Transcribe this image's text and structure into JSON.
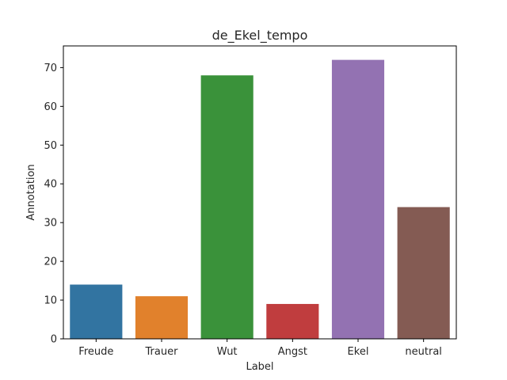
{
  "chart_data": {
    "type": "bar",
    "title": "de_Ekel_tempo",
    "xlabel": "Label",
    "ylabel": "Annotation",
    "categories": [
      "Freude",
      "Trauer",
      "Wut",
      "Angst",
      "Ekel",
      "neutral"
    ],
    "values": [
      14,
      11,
      68,
      9,
      72,
      34
    ],
    "colors": [
      "#3274a1",
      "#e1812c",
      "#3a923a",
      "#c03d3e",
      "#9372b2",
      "#845b53"
    ],
    "ylim": [
      0,
      75.6
    ],
    "yticks": [
      0,
      10,
      20,
      30,
      40,
      50,
      60,
      70
    ],
    "grid": false,
    "legend": "none"
  }
}
